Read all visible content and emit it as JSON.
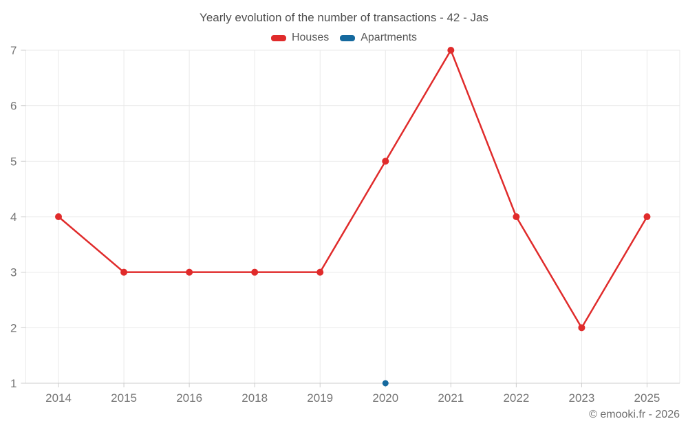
{
  "title": "Yearly evolution of the number of transactions - 42 - Jas",
  "legend": {
    "items": [
      {
        "label": "Houses",
        "color": "#e02b2b"
      },
      {
        "label": "Apartments",
        "color": "#15699e"
      }
    ]
  },
  "footer": {
    "credit": "© emooki.fr - 2026"
  },
  "colors": {
    "houses": "#e02b2b",
    "apartments": "#15699e",
    "grid": "#e9e9e9",
    "axis": "#cccccc",
    "label": "#757575",
    "title": "#4f4f4f"
  },
  "chart_data": {
    "type": "line",
    "title": "Yearly evolution of the number of transactions - 42 - Jas",
    "categories": [
      "2014",
      "2015",
      "2016",
      "2018",
      "2019",
      "2020",
      "2021",
      "2022",
      "2023",
      "2025"
    ],
    "series": [
      {
        "name": "Houses",
        "color": "#e02b2b",
        "marker_radius": 5,
        "values": [
          4,
          3,
          3,
          3,
          3,
          5,
          7,
          4,
          2,
          4
        ]
      },
      {
        "name": "Apartments",
        "color": "#15699e",
        "marker_radius": 4.5,
        "values": [
          null,
          null,
          null,
          null,
          null,
          1,
          null,
          null,
          null,
          null
        ]
      }
    ],
    "xlabel": "",
    "ylabel": "",
    "ylim": [
      1,
      7
    ],
    "yticks": [
      1,
      2,
      3,
      4,
      5,
      6,
      7
    ],
    "grid": true,
    "legend_position": "top",
    "credit": "© emooki.fr - 2026"
  }
}
